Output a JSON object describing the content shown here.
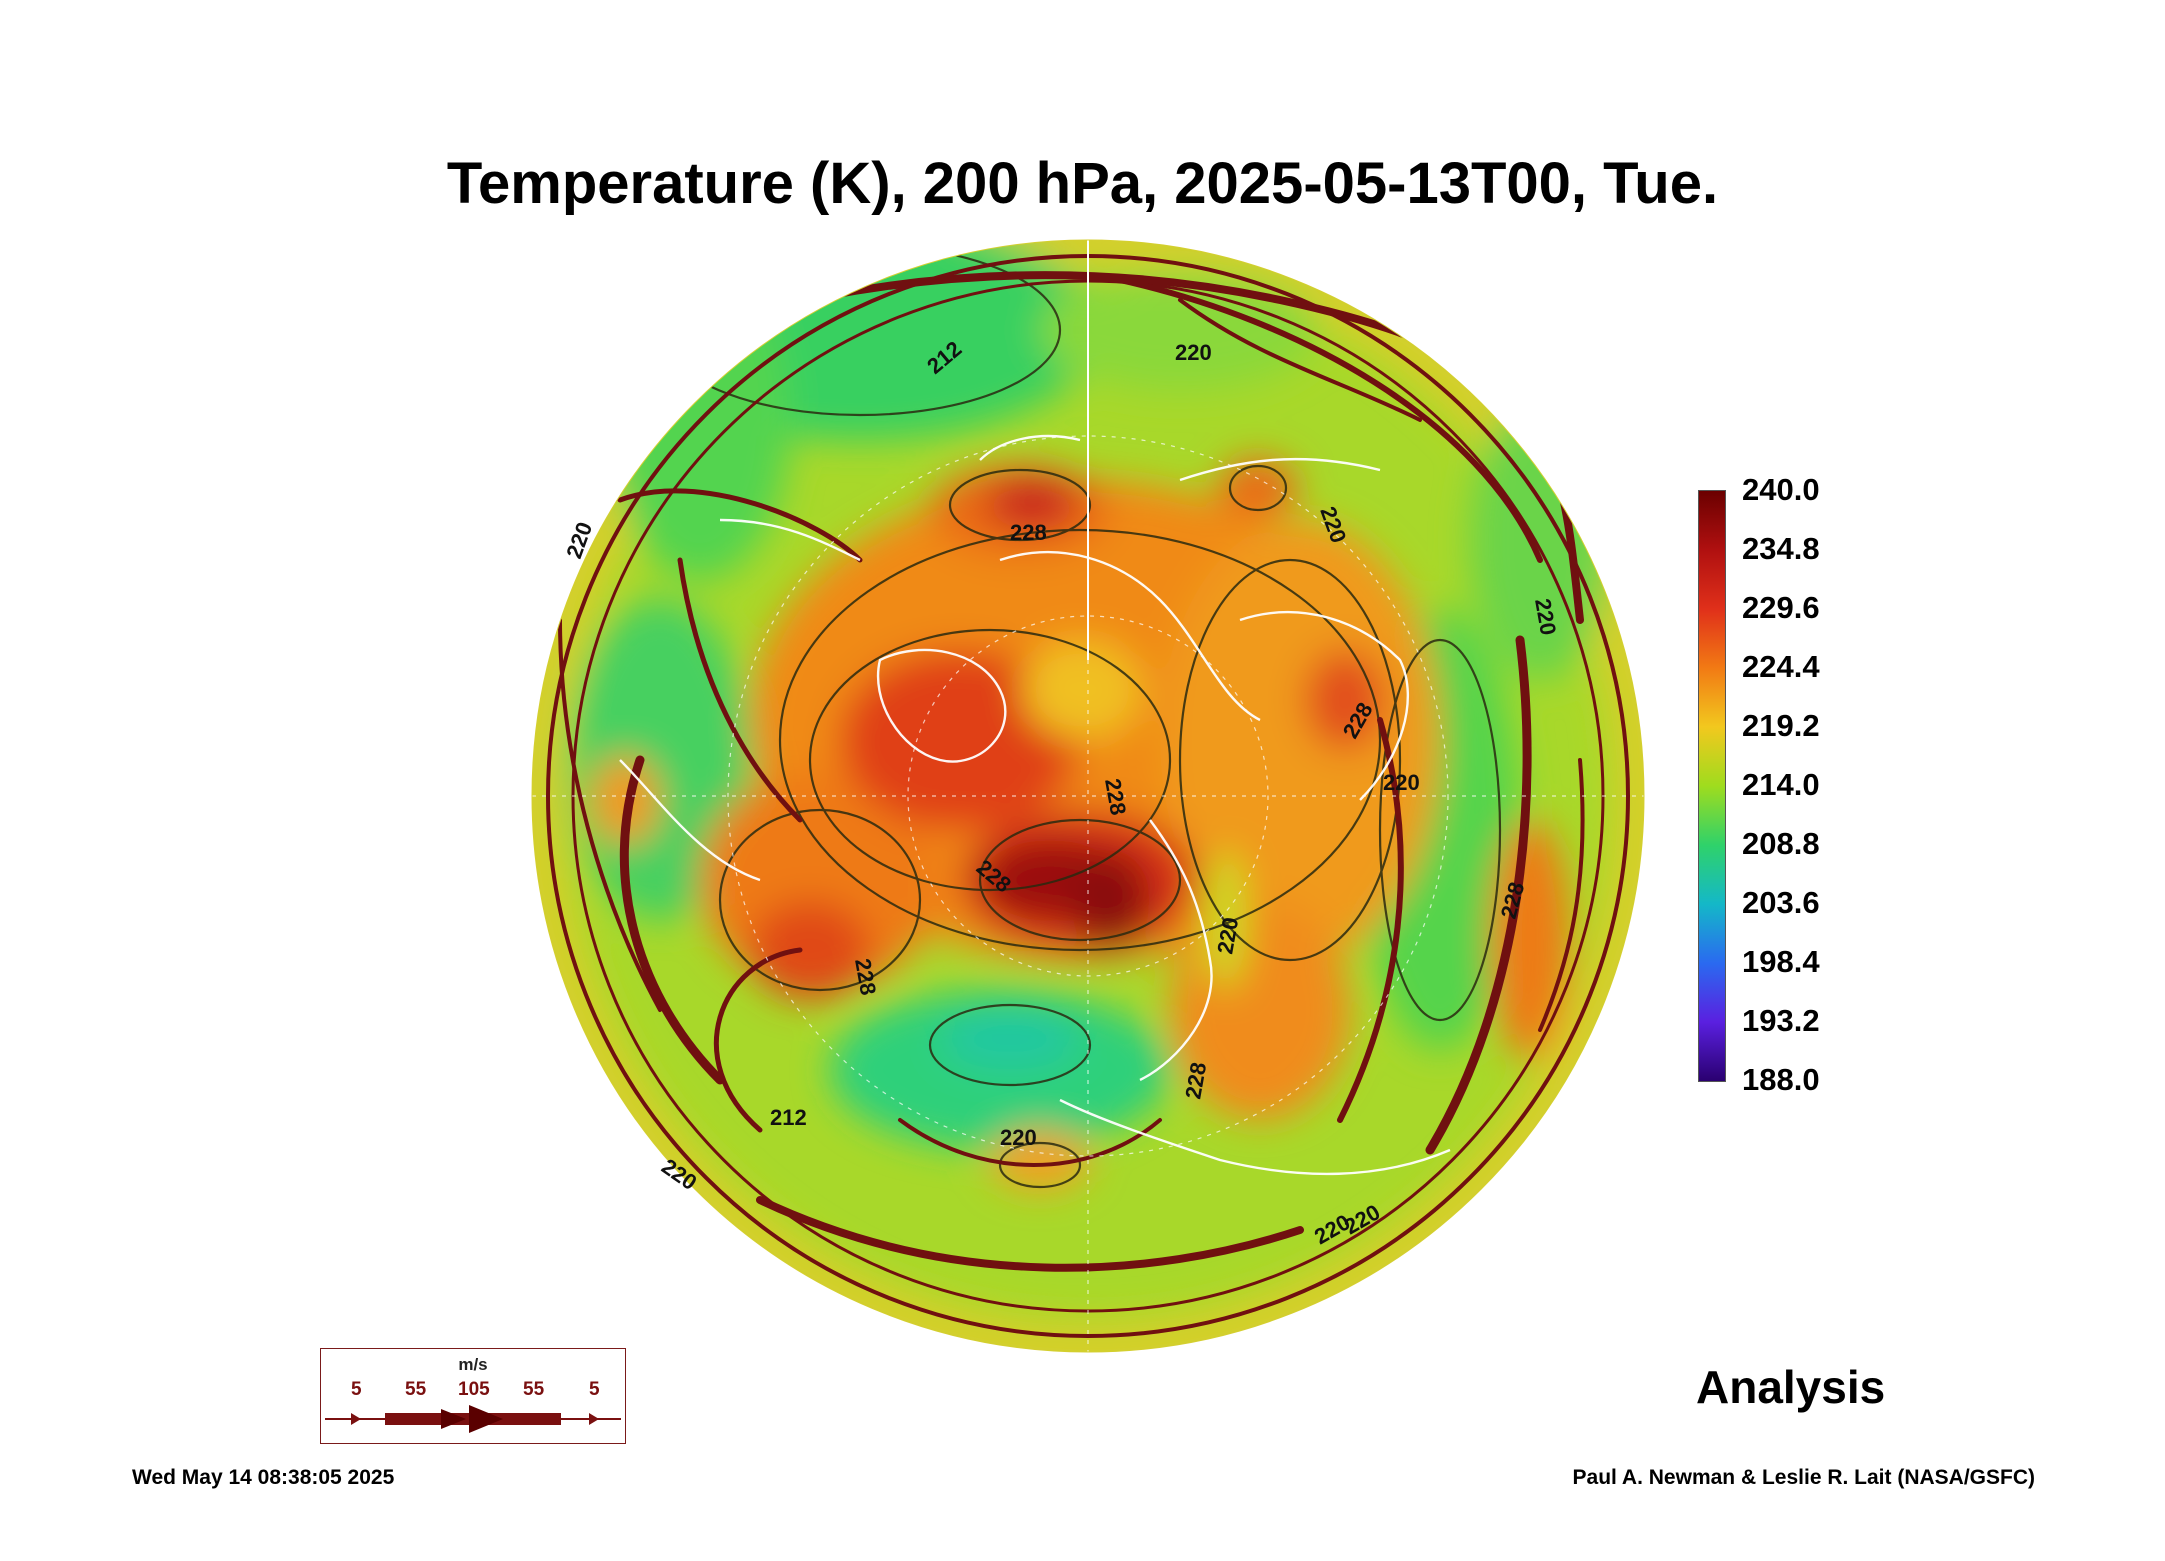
{
  "title": "Temperature (K), 200 hPa, 2025-05-13T00, Tue.",
  "colorbar": {
    "labels": [
      "240.0",
      "234.8",
      "229.6",
      "224.4",
      "219.2",
      "214.0",
      "208.8",
      "203.6",
      "198.4",
      "193.2",
      "188.0"
    ],
    "colors": [
      "#6b0000",
      "#b01010",
      "#e0301a",
      "#f27a14",
      "#f2c81e",
      "#9fdc1e",
      "#2fd26a",
      "#14b8c8",
      "#2a6af0",
      "#5a20e0",
      "#2a0070"
    ]
  },
  "contour_labels": [
    "212",
    "228",
    "220",
    "220",
    "220",
    "228",
    "220",
    "228",
    "228",
    "228",
    "228",
    "228",
    "212",
    "220",
    "220",
    "220",
    "220",
    "220",
    "220"
  ],
  "analysis_label": "Analysis",
  "legend": {
    "unit": "m/s",
    "values": [
      "5",
      "55",
      "105",
      "55",
      "5"
    ]
  },
  "timestamp": "Wed May 14 08:38:05 2025",
  "credit": "Paul A. Newman & Leslie R. Lait (NASA/GSFC)"
}
